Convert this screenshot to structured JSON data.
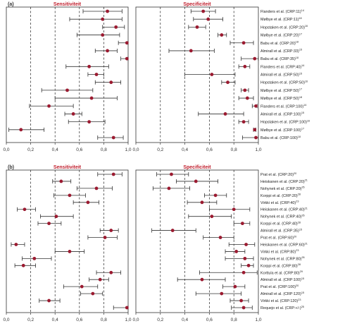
{
  "colors": {
    "point": "#9b1a30",
    "title": "#c0202e",
    "line": "#333333",
    "grid": "#222222"
  },
  "chart_data": [
    {
      "type": "forest",
      "panel_label": "(a)",
      "titles": [
        "Sensitiviteit",
        "Specificiteit"
      ],
      "xlim": [
        0,
        1
      ],
      "xticks": [
        "0,0",
        "0,2",
        "0,4",
        "0,6",
        "0,8",
        "1,0"
      ],
      "reference_lines": [
        0.2,
        0.4,
        0.6,
        0.8
      ],
      "rows": [
        {
          "label": "Flanders et al. (CRP:11)",
          "ref": "14",
          "sens": [
            0.63,
            0.83,
            0.95
          ],
          "spec": [
            0.45,
            0.55,
            0.65
          ]
        },
        {
          "label": "Mølbye et al. (CRP:11)",
          "ref": "18",
          "sens": [
            0.52,
            0.79,
            0.95
          ],
          "spec": [
            0.47,
            0.59,
            0.71
          ]
        },
        {
          "label": "Hopstaken et al. (CRP:20)",
          "ref": "16",
          "sens": [
            0.79,
            0.9,
            0.97
          ],
          "spec": [
            0.43,
            0.5,
            0.57
          ]
        },
        {
          "label": "Mølbye et al. (CRP:20)",
          "ref": "17",
          "sens": [
            0.58,
            0.79,
            0.93
          ],
          "spec": [
            0.67,
            0.7,
            0.74
          ]
        },
        {
          "label": "Babu et al. (CRP:20)",
          "ref": "18",
          "sens": [
            0.92,
            0.99,
            1.0
          ],
          "spec": [
            0.77,
            0.88,
            0.96
          ]
        },
        {
          "label": "Almirall et al. (CRP:33)",
          "ref": "15",
          "sens": [
            0.73,
            0.83,
            0.91
          ],
          "spec": [
            0.27,
            0.45,
            0.64
          ]
        },
        {
          "label": "Babu et al. (CRP:35)",
          "ref": "18",
          "sens": [
            0.94,
            0.99,
            1.0
          ],
          "spec": [
            0.86,
            0.97,
            1.0
          ]
        },
        {
          "label": "Flanders et al. (CRP:40)",
          "ref": "14",
          "sens": [
            0.49,
            0.68,
            0.84
          ],
          "spec": [
            0.84,
            0.89,
            0.93
          ]
        },
        {
          "label": "Almirall et al. (CRP:50)",
          "ref": "15",
          "sens": [
            0.67,
            0.74,
            0.8
          ],
          "spec": [
            0.4,
            0.62,
            0.81
          ]
        },
        {
          "label": "Hopstaken et al. (CRP:50)",
          "ref": "16",
          "sens": [
            0.73,
            0.86,
            0.94
          ],
          "spec": [
            0.7,
            0.75,
            0.81
          ]
        },
        {
          "label": "Mølbye et al. (CRP:50)",
          "ref": "17",
          "sens": [
            0.29,
            0.5,
            0.71
          ],
          "spec": [
            0.86,
            0.89,
            0.92
          ]
        },
        {
          "label": "Mølbye et al. (CRP:50)",
          "ref": "18",
          "sens": [
            0.4,
            0.7,
            0.91
          ],
          "spec": [
            0.84,
            0.91,
            0.96
          ]
        },
        {
          "label": "Flanders et al. (CRP:100)",
          "ref": "14",
          "sens": [
            0.19,
            0.35,
            0.55
          ],
          "spec": [
            0.95,
            0.98,
            0.99
          ]
        },
        {
          "label": "Almirall et al. (CRP:100)",
          "ref": "15",
          "sens": [
            0.48,
            0.55,
            0.62
          ],
          "spec": [
            0.51,
            0.73,
            0.88
          ]
        },
        {
          "label": "Hopstaken et al. (CRP:100)",
          "ref": "16",
          "sens": [
            0.51,
            0.68,
            0.81
          ],
          "spec": [
            0.84,
            0.88,
            0.92
          ]
        },
        {
          "label": "Mølbye et al. (CRP:100)",
          "ref": "17",
          "sens": [
            0.02,
            0.12,
            0.31
          ],
          "spec": [
            0.96,
            0.97,
            0.98
          ]
        },
        {
          "label": "Babu et al. (CRP:100)",
          "ref": "18",
          "sens": [
            0.75,
            0.88,
            0.96
          ],
          "spec": [
            0.87,
            0.98,
            1.0
          ]
        }
      ]
    },
    {
      "type": "forest",
      "panel_label": "(b)",
      "titles": [
        "Sensitiviteit",
        "Specificiteit"
      ],
      "xlim": [
        0,
        1
      ],
      "xticks": [
        "0,0",
        "0,2",
        "0,4",
        "0,6",
        "0,8",
        "1,0"
      ],
      "reference_lines": [
        0.2,
        0.4,
        0.6,
        0.8
      ],
      "rows": [
        {
          "label": "Prat et al. (CRP:20)",
          "ref": "20",
          "sens": [
            0.75,
            0.88,
            0.95
          ],
          "spec": [
            0.17,
            0.29,
            0.43
          ]
        },
        {
          "label": "Heiskanen et al. (CRP:20)",
          "ref": "21",
          "sens": [
            0.38,
            0.45,
            0.53
          ],
          "spec": [
            0.33,
            0.49,
            0.67
          ]
        },
        {
          "label": "Nohynek et al. (CRP:20)",
          "ref": "26",
          "sens": [
            0.58,
            0.74,
            0.87
          ],
          "spec": [
            0.14,
            0.27,
            0.44
          ]
        },
        {
          "label": "Korppi et al. (CRP:20)",
          "ref": "28",
          "sens": [
            0.39,
            0.52,
            0.65
          ],
          "spec": [
            0.56,
            0.65,
            0.74
          ]
        },
        {
          "label": "Virkki et al. (CRP:40)",
          "ref": "23",
          "sens": [
            0.55,
            0.67,
            0.76
          ],
          "spec": [
            0.42,
            0.54,
            0.66
          ]
        },
        {
          "label": "Heiskanen et al. (CRP:40)",
          "ref": "21",
          "sens": [
            0.09,
            0.15,
            0.24
          ],
          "spec": [
            0.6,
            0.8,
            0.93
          ]
        },
        {
          "label": "Nohynek et al. (CRP:40)",
          "ref": "26",
          "sens": [
            0.28,
            0.41,
            0.55
          ],
          "spec": [
            0.43,
            0.62,
            0.78
          ]
        },
        {
          "label": "Korppi et al. (CRP:40)",
          "ref": "28",
          "sens": [
            0.26,
            0.35,
            0.45
          ],
          "spec": [
            0.8,
            0.87,
            0.93
          ]
        },
        {
          "label": "Almirall et al. (CRP:35)",
          "ref": "15",
          "sens": [
            0.77,
            0.86,
            0.92
          ],
          "spec": [
            0.13,
            0.3,
            0.49
          ]
        },
        {
          "label": "Prat et al. (CRP:60)",
          "ref": "20",
          "sens": [
            0.67,
            0.81,
            0.91
          ],
          "spec": [
            0.55,
            0.69,
            0.8
          ]
        },
        {
          "label": "Heiskanen et al. (CRP:60)",
          "ref": "21",
          "sens": [
            0.04,
            0.08,
            0.15
          ],
          "spec": [
            0.76,
            0.9,
            0.97
          ]
        },
        {
          "label": "Virkki et al. (CRP:80)",
          "ref": "23",
          "sens": [
            0.4,
            0.52,
            0.64
          ],
          "spec": [
            0.73,
            0.82,
            0.89
          ]
        },
        {
          "label": "Nohynek et al. (CRP:80)",
          "ref": "26",
          "sens": [
            0.13,
            0.23,
            0.37
          ],
          "spec": [
            0.73,
            0.89,
            0.96
          ]
        },
        {
          "label": "Korppi et al. (CRP:80)",
          "ref": "28",
          "sens": [
            0.07,
            0.14,
            0.24
          ],
          "spec": [
            0.86,
            0.92,
            0.96
          ]
        },
        {
          "label": "Korttula et al. (CRP:80)",
          "ref": "29",
          "sens": [
            0.74,
            0.86,
            0.94
          ],
          "spec": [
            0.52,
            0.88,
            0.99
          ]
        },
        {
          "label": "Almirall et al. (CRP:100)",
          "ref": "15",
          "sens": [
            0.68,
            0.77,
            0.84
          ],
          "spec": [
            0.34,
            0.54,
            0.73
          ]
        },
        {
          "label": "Prat et al. (CRP:100)",
          "ref": "20",
          "sens": [
            0.47,
            0.62,
            0.75
          ],
          "spec": [
            0.71,
            0.81,
            0.89
          ]
        },
        {
          "label": "Almirall et al. (CRP:120)",
          "ref": "15",
          "sens": [
            0.61,
            0.71,
            0.79
          ],
          "spec": [
            0.49,
            0.7,
            0.86
          ]
        },
        {
          "label": "Virkki et al. (CRP:120)",
          "ref": "23",
          "sens": [
            0.27,
            0.35,
            0.44
          ],
          "spec": [
            0.77,
            0.86,
            0.92
          ]
        },
        {
          "label": "Requejo et al. (CRP:+/-)",
          "ref": "25",
          "sens": [
            0.88,
            0.99,
            1.0
          ],
          "spec": [
            0.78,
            0.88,
            0.95
          ]
        }
      ]
    }
  ]
}
